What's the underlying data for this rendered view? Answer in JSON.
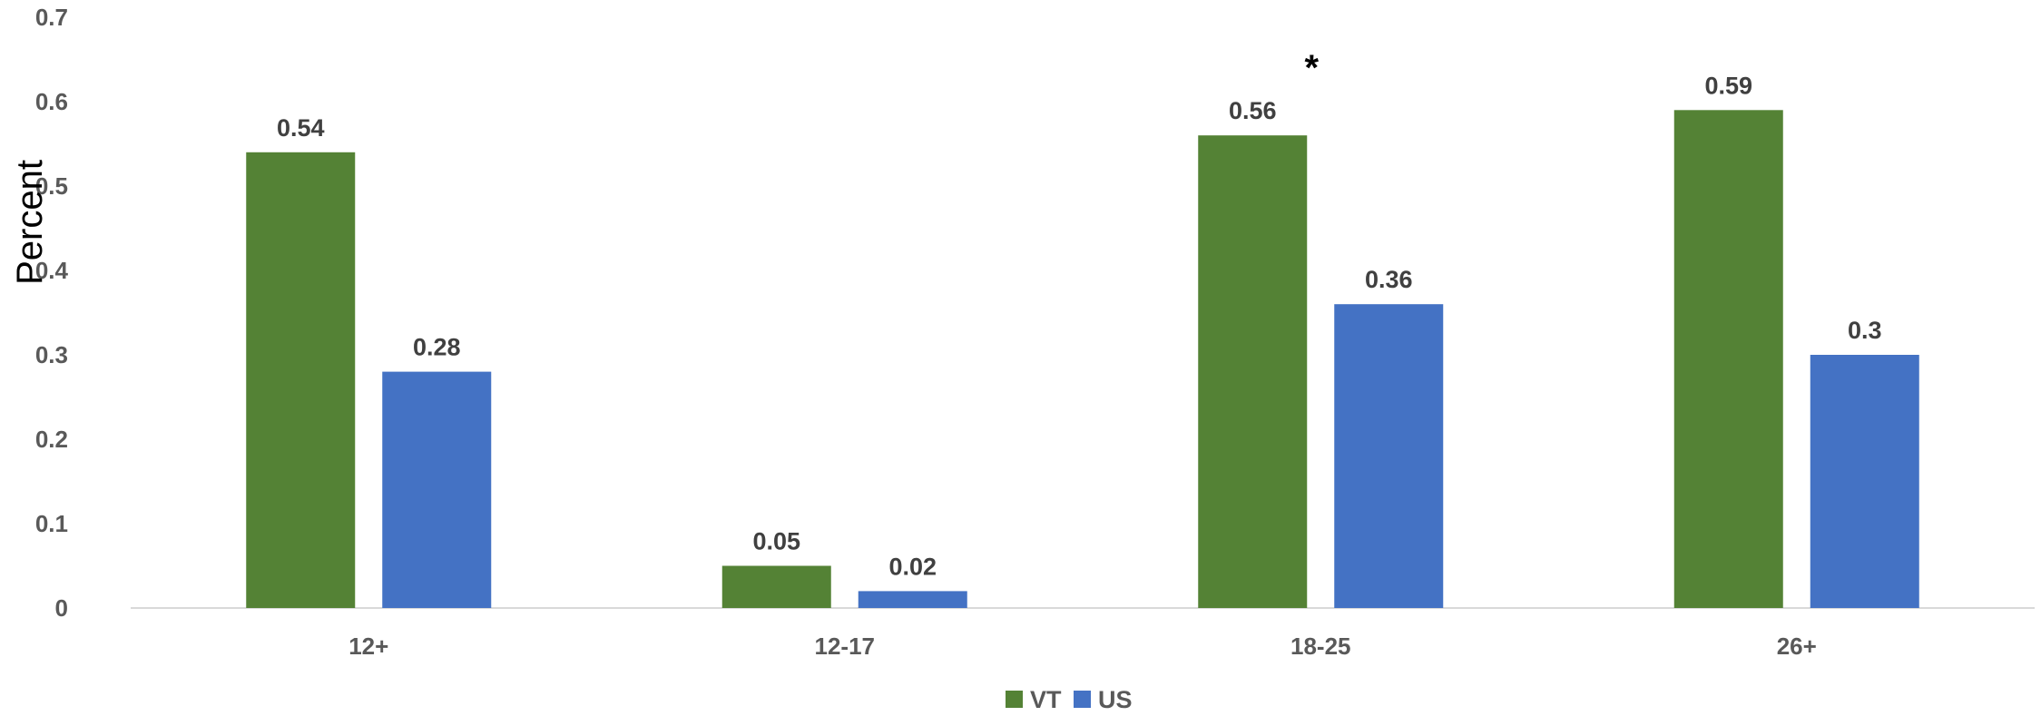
{
  "chart_data": {
    "type": "bar",
    "categories": [
      "12+",
      "12-17",
      "18-25",
      "26+"
    ],
    "series": [
      {
        "name": "VT",
        "values": [
          0.54,
          0.05,
          0.56,
          0.59
        ],
        "color": "#548235"
      },
      {
        "name": "US",
        "values": [
          0.28,
          0.02,
          0.36,
          0.3
        ],
        "color": "#4472C4"
      }
    ],
    "title": "",
    "xlabel": "",
    "ylabel": "Percent",
    "ylim": [
      0,
      0.7
    ],
    "yticks": [
      0,
      0.1,
      0.2,
      0.3,
      0.4,
      0.5,
      0.6,
      0.7
    ],
    "ytick_labels": [
      "0",
      "0.1",
      "0.2",
      "0.3",
      "0.4",
      "0.5",
      "0.6",
      "0.7"
    ],
    "data_labels": [
      [
        "0.54",
        "0.05",
        "0.56",
        "0.59"
      ],
      [
        "0.28",
        "0.02",
        "0.36",
        "0.3"
      ]
    ],
    "grid": false,
    "legend": "bottom-center",
    "annotations": [
      {
        "text": "*",
        "category": "18-25",
        "series": "VT"
      }
    ]
  }
}
